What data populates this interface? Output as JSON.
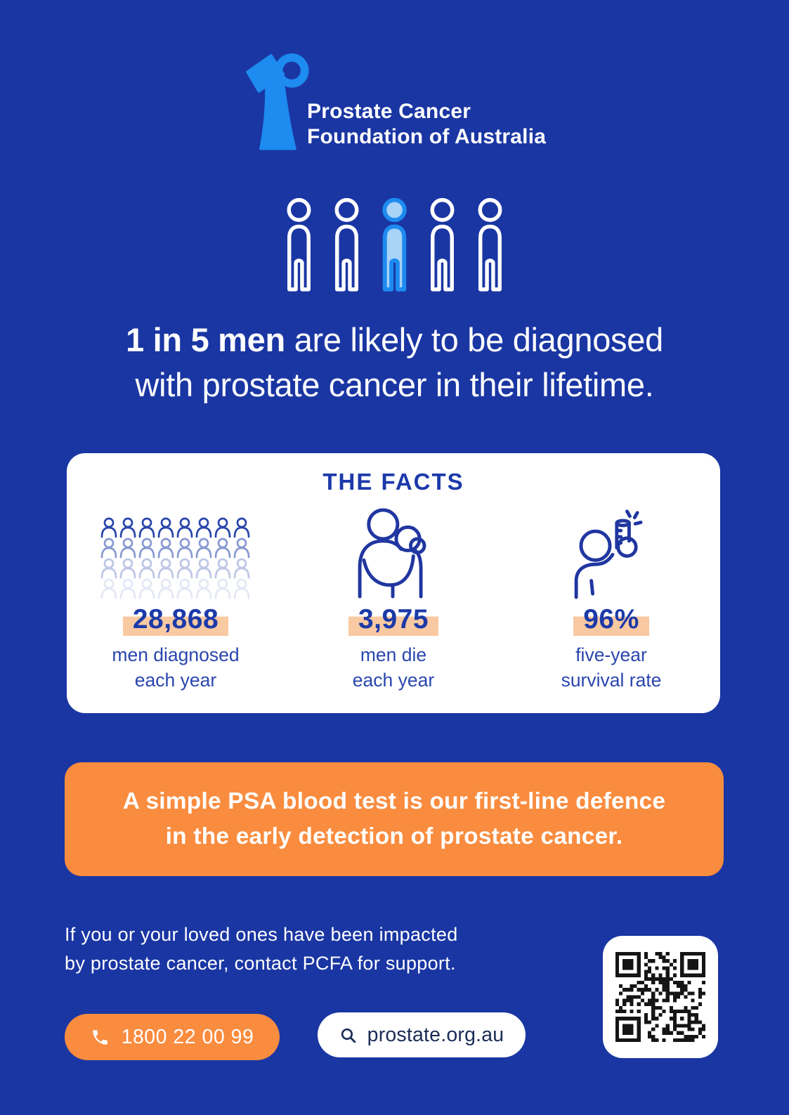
{
  "colors": {
    "background": "#1A36A3",
    "brand_blue": "#1D8BF0",
    "light_blue_fill": "#A9D3F7",
    "dark_blue_text": "#1C3AA9",
    "label_blue": "#2A46AE",
    "peach_highlight": "#F9C9A2",
    "orange": "#F98C3F",
    "white": "#FFFFFF"
  },
  "logo": {
    "line1": "Prostate Cancer",
    "line2": "Foundation of Australia"
  },
  "headline": {
    "bold": "1 in 5 men",
    "rest": " are likely to be diagnosed",
    "line2": "with prostate cancer in their lifetime."
  },
  "facts": {
    "title": "THE FACTS",
    "items": [
      {
        "icon": "crowd-icon",
        "value": "28,868",
        "label_line1": "men diagnosed",
        "label_line2": "each year"
      },
      {
        "icon": "embrace-icon",
        "value": "3,975",
        "label_line1": "men die",
        "label_line2": "each year"
      },
      {
        "icon": "test-tube-icon",
        "value": "96%",
        "label_line1": "five-year",
        "label_line2": "survival rate"
      }
    ]
  },
  "banner": {
    "line1": "A simple PSA blood test is our first-line defence",
    "line2": "in the early detection of prostate cancer."
  },
  "support": {
    "line1": "If you or your loved ones have been impacted",
    "line2": "by prostate cancer, contact PCFA for support.",
    "phone": "1800 22 00 99",
    "website": "prostate.org.au"
  }
}
